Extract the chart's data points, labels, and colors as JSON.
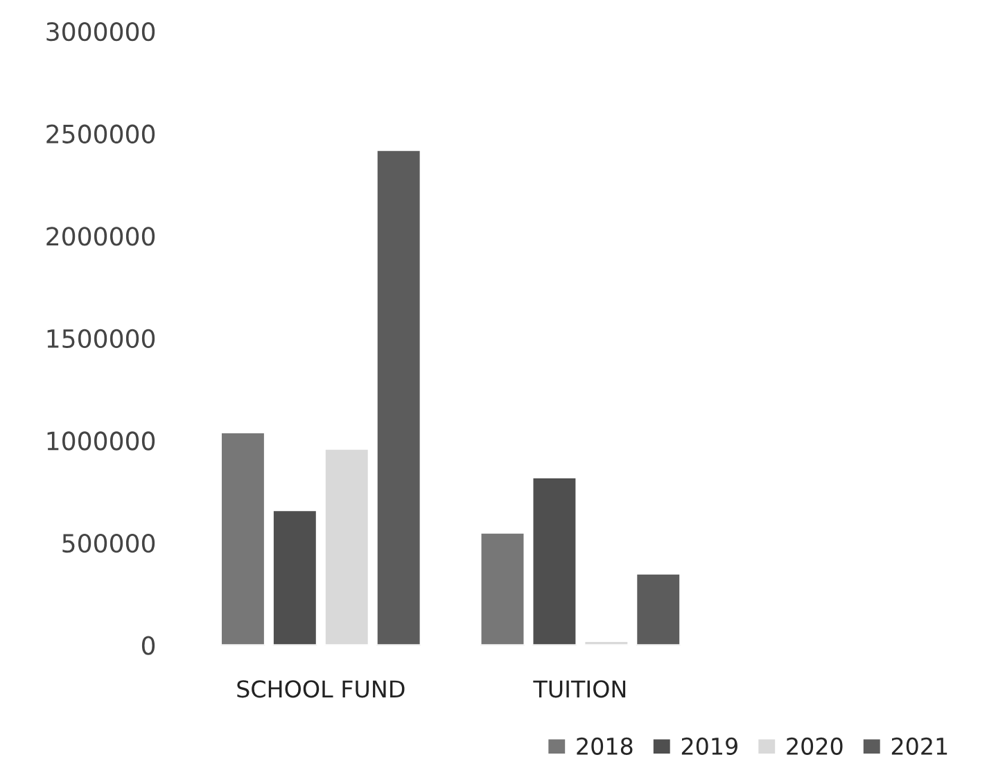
{
  "chart_data": {
    "type": "bar",
    "categories": [
      "SCHOOL FUND",
      "TUITION"
    ],
    "series": [
      {
        "name": "2018",
        "color": "#777777",
        "values": [
          1040000,
          550000
        ]
      },
      {
        "name": "2019",
        "color": "#4f4f4f",
        "values": [
          660000,
          820000
        ]
      },
      {
        "name": "2020",
        "color": "#d9d9d9",
        "values": [
          960000,
          20000
        ]
      },
      {
        "name": "2021",
        "color": "#5c5c5c",
        "values": [
          2420000,
          350000
        ]
      }
    ],
    "ylim": [
      0,
      3000000
    ],
    "yticks": [
      0,
      500000,
      1000000,
      1500000,
      2000000,
      2500000,
      3000000
    ],
    "grid": false,
    "legend": "bottom right"
  }
}
